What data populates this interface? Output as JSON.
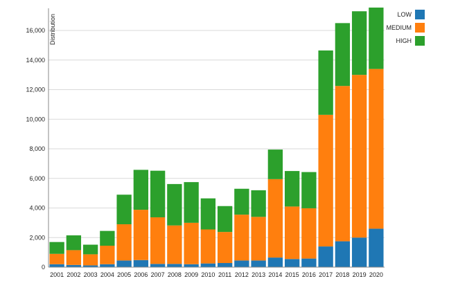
{
  "chart_data": {
    "type": "bar",
    "stacked": true,
    "ylabel": "Distribution",
    "ylim": [
      0,
      17500
    ],
    "yticks": [
      0,
      2000,
      4000,
      6000,
      8000,
      10000,
      12000,
      14000,
      16000
    ],
    "ytick_labels": [
      "0",
      "2,000",
      "4,000",
      "6,000",
      "8,000",
      "10,000",
      "12,000",
      "14,000",
      "16,000"
    ],
    "grid": true,
    "legend_position": "top-right",
    "categories": [
      "2001",
      "2002",
      "2003",
      "2004",
      "2005",
      "2006",
      "2007",
      "2008",
      "2009",
      "2010",
      "2011",
      "2012",
      "2013",
      "2014",
      "2015",
      "2016",
      "2017",
      "2018",
      "2019",
      "2020"
    ],
    "series": [
      {
        "name": "LOW",
        "color": "#1f77b4",
        "values": [
          200,
          150,
          120,
          200,
          450,
          480,
          220,
          220,
          200,
          250,
          280,
          450,
          450,
          650,
          550,
          580,
          1400,
          1750,
          2000,
          2600
        ]
      },
      {
        "name": "MEDIUM",
        "color": "#ff7f0e",
        "values": [
          700,
          1000,
          750,
          1250,
          2450,
          3400,
          3150,
          2600,
          2800,
          2300,
          2100,
          3100,
          2950,
          5300,
          3550,
          3400,
          8900,
          10500,
          11000,
          10800
        ]
      },
      {
        "name": "HIGH",
        "color": "#2ca02c",
        "values": [
          800,
          1000,
          650,
          1000,
          2000,
          2700,
          3150,
          2800,
          2750,
          2100,
          1750,
          1750,
          1800,
          2000,
          2400,
          2450,
          4350,
          4250,
          4300,
          4150
        ]
      }
    ]
  }
}
